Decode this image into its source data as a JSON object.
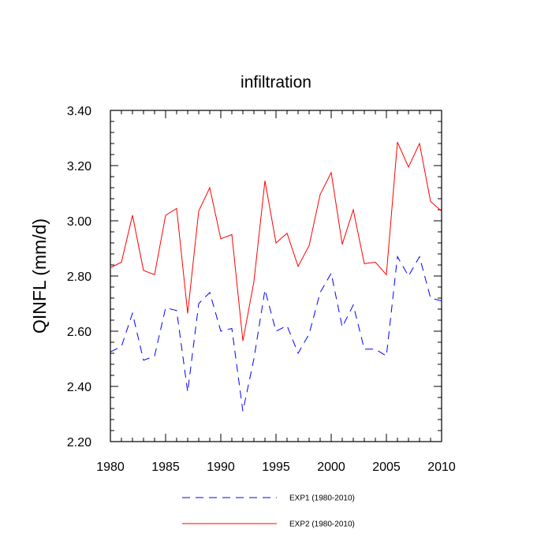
{
  "chart_data": {
    "type": "line",
    "title": "infiltration",
    "xlabel": "",
    "ylabel": "QINFL  (mm/d)",
    "xlim": [
      1980,
      2010
    ],
    "ylim": [
      2.2,
      3.4
    ],
    "x_ticks": [
      1980,
      1985,
      1990,
      1995,
      2000,
      2005,
      2010
    ],
    "y_ticks": [
      "2.20",
      "2.40",
      "2.60",
      "2.80",
      "3.00",
      "3.20",
      "3.40"
    ],
    "grid": false,
    "legend_position": "bottom",
    "x": [
      1980,
      1981,
      1982,
      1983,
      1984,
      1985,
      1986,
      1987,
      1988,
      1989,
      1990,
      1991,
      1992,
      1993,
      1994,
      1995,
      1996,
      1997,
      1998,
      1999,
      2000,
      2001,
      2002,
      2003,
      2004,
      2005,
      2006,
      2007,
      2008,
      2009,
      2010
    ],
    "series": [
      {
        "name": "EXP1 (1980-2010)",
        "color": "#0000ff",
        "dash": "dashed",
        "values": [
          2.525,
          2.545,
          2.665,
          2.495,
          2.51,
          2.685,
          2.675,
          2.38,
          2.7,
          2.74,
          2.6,
          2.61,
          2.31,
          2.5,
          2.75,
          2.6,
          2.62,
          2.52,
          2.59,
          2.74,
          2.81,
          2.615,
          2.695,
          2.535,
          2.535,
          2.51,
          2.87,
          2.8,
          2.87,
          2.72,
          2.71
        ]
      },
      {
        "name": "EXP2 (1980-2010)",
        "color": "#ff0000",
        "dash": "solid",
        "values": [
          2.83,
          2.85,
          3.02,
          2.82,
          2.805,
          3.02,
          3.045,
          2.665,
          3.035,
          3.12,
          2.935,
          2.95,
          2.565,
          2.78,
          3.145,
          2.92,
          2.955,
          2.835,
          2.91,
          3.095,
          3.175,
          2.915,
          3.04,
          2.845,
          2.85,
          2.805,
          3.285,
          3.195,
          3.28,
          3.07,
          3.035
        ]
      }
    ]
  }
}
